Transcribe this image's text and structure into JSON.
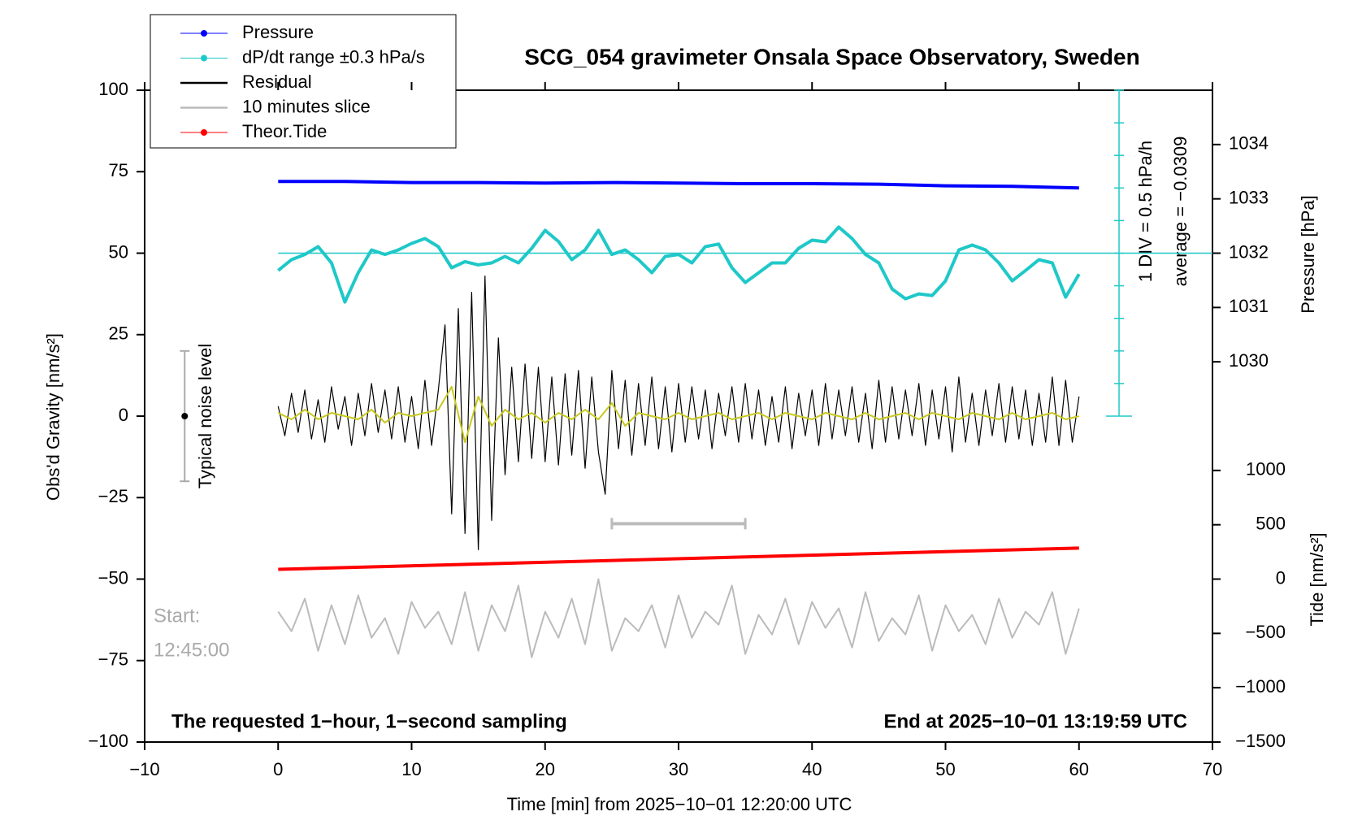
{
  "chart_data": {
    "type": "line",
    "title": "SCG_054 gravimeter Onsala Space Observatory, Sweden",
    "xlabel": "Time [min] from 2025−10−01 12:20:00 UTC",
    "ylabel": "Obs'd Gravity [nm/s²]",
    "y2label": "Pressure [hPa]",
    "y3label": "Tide [nm/s²]",
    "xlim": [
      -10,
      70
    ],
    "xticks": [
      {
        "value": -10,
        "label": "−10"
      },
      0,
      10,
      20,
      30,
      40,
      50,
      60,
      70
    ],
    "ylim": [
      -100,
      100
    ],
    "yticks": [
      {
        "value": -100,
        "label": "−100"
      },
      {
        "value": -75,
        "label": "−75"
      },
      {
        "value": -50,
        "label": "−50"
      },
      {
        "value": -25,
        "label": "−25"
      },
      0,
      25,
      50,
      75,
      100
    ],
    "y2lim": [
      1023,
      1035
    ],
    "y2ticks": [
      1030,
      1031,
      1032,
      1033,
      1034
    ],
    "y3lim": [
      -1500,
      4500
    ],
    "y3ticks": [
      {
        "value": -1500,
        "label": "−1500"
      },
      {
        "value": -1000,
        "label": "−1000"
      },
      {
        "value": -500,
        "label": "−500"
      },
      0,
      500,
      1000
    ],
    "x": [
      0,
      1,
      2,
      3,
      4,
      5,
      6,
      7,
      8,
      9,
      10,
      11,
      12,
      13,
      14,
      15,
      16,
      17,
      18,
      19,
      20,
      21,
      22,
      23,
      24,
      25,
      26,
      27,
      28,
      29,
      30,
      31,
      32,
      33,
      34,
      35,
      36,
      37,
      38,
      39,
      40,
      41,
      42,
      43,
      44,
      45,
      46,
      47,
      48,
      49,
      50,
      51,
      52,
      53,
      54,
      55,
      56,
      57,
      58,
      59,
      60
    ],
    "series": [
      {
        "name": "Pressure",
        "color": "#0000ff",
        "axis": "y2",
        "legend_marker": true,
        "x": [
          0,
          5,
          10,
          15,
          20,
          25,
          30,
          35,
          40,
          45,
          50,
          55,
          60
        ],
        "values": [
          1033.32,
          1033.32,
          1033.3,
          1033.3,
          1033.29,
          1033.3,
          1033.29,
          1033.28,
          1033.28,
          1033.27,
          1033.24,
          1033.23,
          1033.2
        ]
      },
      {
        "name": "dP/dt range ±0.3 hPa/s",
        "color": "#1fc8c8",
        "legend_marker": true,
        "values": [
          44.7,
          48,
          49.6,
          52,
          47,
          35,
          44,
          51,
          49.6,
          51,
          53,
          54.5,
          52,
          45.5,
          47.4,
          46.4,
          47,
          49,
          47,
          51.5,
          57,
          53.6,
          48,
          51,
          57,
          49.6,
          51,
          48,
          44,
          49,
          49.6,
          47,
          52,
          52.8,
          45.5,
          41,
          44,
          47,
          47,
          51.5,
          54,
          53.5,
          58,
          54.5,
          49.6,
          47,
          39,
          36,
          37.5,
          37,
          41.5,
          51,
          52.5,
          51,
          47,
          41.5,
          44.7,
          48,
          47,
          36.5,
          43.6
        ]
      },
      {
        "name": "Residual",
        "color": "#000000",
        "x": [
          0,
          0.5,
          1,
          1.5,
          2,
          2.5,
          3,
          3.5,
          4,
          4.5,
          5,
          5.5,
          6,
          6.5,
          7,
          7.5,
          8,
          8.5,
          9,
          9.5,
          10,
          10.5,
          11,
          11.5,
          12,
          12.5,
          13,
          13.5,
          14,
          14.5,
          15,
          15.5,
          16,
          16.5,
          17,
          17.5,
          18,
          18.5,
          19,
          19.5,
          20,
          20.5,
          21,
          21.5,
          22,
          22.5,
          23,
          23.5,
          24,
          24.5,
          25,
          25.5,
          26,
          26.5,
          27,
          27.5,
          28,
          28.5,
          29,
          29.5,
          30,
          30.5,
          31,
          31.5,
          32,
          32.5,
          33,
          33.5,
          34,
          34.5,
          35,
          35.5,
          36,
          36.5,
          37,
          37.5,
          38,
          38.5,
          39,
          39.5,
          40,
          40.5,
          41,
          41.5,
          42,
          42.5,
          43,
          43.5,
          44,
          44.5,
          45,
          45.5,
          46,
          46.5,
          47,
          47.5,
          48,
          48.5,
          49,
          49.5,
          50,
          50.5,
          51,
          51.5,
          52,
          52.5,
          53,
          53.5,
          54,
          54.5,
          55,
          55.5,
          56,
          56.5,
          57,
          57.5,
          58,
          58.5,
          59,
          59.5,
          60
        ],
        "values": [
          3,
          -6,
          7,
          -5,
          8,
          -7,
          5,
          -8,
          9,
          -4,
          6,
          -9,
          7,
          -6,
          10,
          -5,
          8,
          -7,
          9,
          -8,
          6,
          -10,
          11,
          -9,
          8,
          28,
          -30,
          33,
          -36,
          38,
          -41,
          43,
          -32,
          24,
          -18,
          15,
          -14,
          16,
          -13,
          15,
          -14,
          12,
          -15,
          13,
          -12,
          14,
          -16,
          12,
          -11,
          -24,
          14,
          -10,
          11,
          -12,
          10,
          -9,
          12,
          -10,
          9,
          -11,
          10,
          -8,
          9,
          -7,
          8,
          -10,
          7,
          -6,
          9,
          -8,
          10,
          -7,
          8,
          -9,
          6,
          -8,
          9,
          -10,
          7,
          -6,
          8,
          -9,
          10,
          -7,
          8,
          -6,
          9,
          -8,
          7,
          -10,
          11,
          -8,
          9,
          -7,
          8,
          -6,
          10,
          -9,
          8,
          -7,
          9,
          -11,
          12,
          -8,
          7,
          -9,
          8,
          -6,
          10,
          -8,
          9,
          -7,
          8,
          -9,
          7,
          -8,
          12,
          -9,
          11,
          -8,
          6
        ]
      },
      {
        "color": "#c8c81e",
        "values": [
          1,
          -1,
          2,
          -1,
          1,
          0,
          -1,
          2,
          -2,
          1,
          0,
          1,
          2,
          9,
          -8,
          6,
          -3,
          2,
          -1,
          1,
          -2,
          1,
          -1,
          2,
          -1,
          4,
          -3,
          1,
          0,
          -1,
          1,
          -1,
          0,
          1,
          -1,
          0,
          1,
          -1,
          1,
          0,
          -1,
          1,
          0,
          -1,
          1,
          -1,
          0,
          1,
          -1,
          1,
          0,
          -1,
          1,
          0,
          -1,
          1,
          -1,
          0,
          1,
          -1,
          0
        ]
      },
      {
        "name": "10 minutes slice",
        "color": "#bbbbbb",
        "values": [
          -60,
          -66,
          -56,
          -72,
          -58,
          -70,
          -55,
          -68,
          -62,
          -73,
          -57,
          -65,
          -60,
          -70,
          -54,
          -72,
          -58,
          -66,
          -52,
          -74,
          -60,
          -68,
          -56,
          -70,
          -50,
          -72,
          -62,
          -66,
          -58,
          -71,
          -55,
          -68,
          -60,
          -64,
          -52,
          -73,
          -61,
          -67,
          -56,
          -70,
          -57,
          -65,
          -59,
          -71,
          -54,
          -69,
          -62,
          -67,
          -55,
          -72,
          -58,
          -66,
          -61,
          -70,
          -56,
          -68,
          -60,
          -64,
          -54,
          -73,
          -59
        ]
      },
      {
        "name": "Theor.Tide",
        "color": "#ff0000",
        "axis": "y3",
        "legend_marker": true,
        "x": [
          0,
          60
        ],
        "values": [
          90,
          285
        ]
      }
    ],
    "reference_line": 50,
    "scale_x": 63,
    "scale_ticks": [
      0,
      10,
      20,
      30,
      40,
      50,
      60,
      70,
      80,
      90,
      100
    ],
    "noise_bar": {
      "x": -7,
      "range": [
        -20,
        20
      ],
      "label": "Typical noise level"
    },
    "slice_bar": {
      "y": -33,
      "range": [
        25,
        35
      ]
    },
    "annotations": [
      "1 DIV = 0.5 hPa/h",
      "average = −0.0309"
    ],
    "start_label": [
      "Start:",
      "12:45:00"
    ],
    "footer_left": "The requested 1−hour, 1−second sampling",
    "footer_right": "End at 2025−10−01 13:19:59 UTC"
  }
}
